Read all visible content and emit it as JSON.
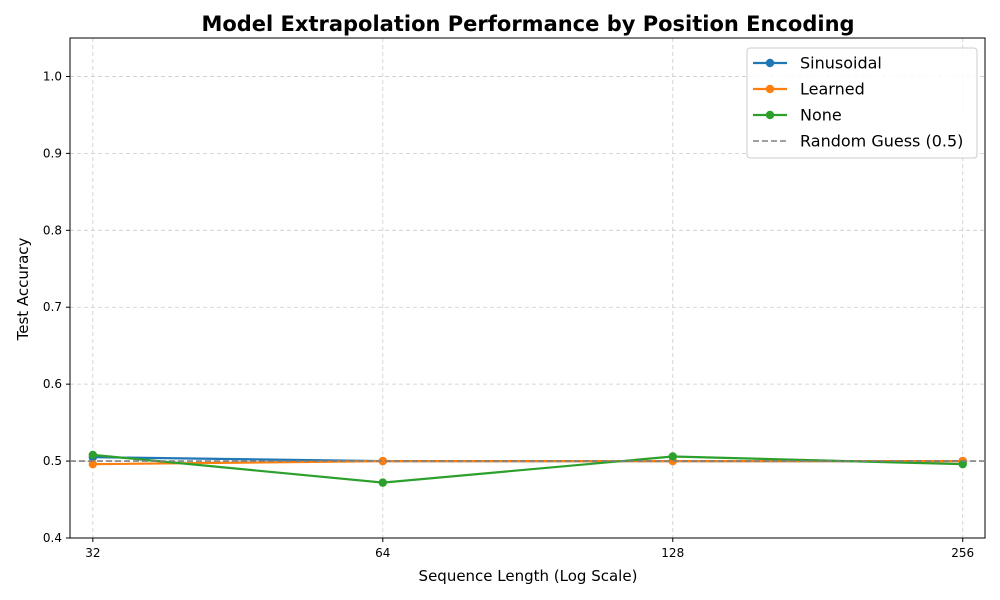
{
  "chart_data": {
    "type": "line",
    "title": "Model Extrapolation Performance by Position Encoding",
    "xlabel": "Sequence Length (Log Scale)",
    "ylabel": "Test Accuracy",
    "x": [
      32,
      64,
      128,
      256
    ],
    "x_tick_labels": [
      "32",
      "64",
      "128",
      "256"
    ],
    "x_scale": "log",
    "xlim": [
      30.3,
      270
    ],
    "ylim": [
      0.4,
      1.05
    ],
    "y_ticks": [
      0.4,
      0.5,
      0.6,
      0.7,
      0.8,
      0.9,
      1.0
    ],
    "y_tick_labels": [
      "0.4",
      "0.5",
      "0.6",
      "0.7",
      "0.8",
      "0.9",
      "1.0"
    ],
    "grid": true,
    "legend_position": "top-right",
    "series": [
      {
        "name": "Sinusoidal",
        "color": "#1f77b4",
        "values": [
          0.505,
          0.5,
          0.5,
          0.5
        ]
      },
      {
        "name": "Learned",
        "color": "#ff7f0e",
        "values": [
          0.496,
          0.5,
          0.5,
          0.5
        ]
      },
      {
        "name": "None",
        "color": "#2ca02c",
        "values": [
          0.508,
          0.472,
          0.506,
          0.496
        ]
      }
    ],
    "reference_line": {
      "name": "Random Guess (0.5)",
      "y": 0.5,
      "color": "#808080",
      "style": "dashed"
    }
  }
}
